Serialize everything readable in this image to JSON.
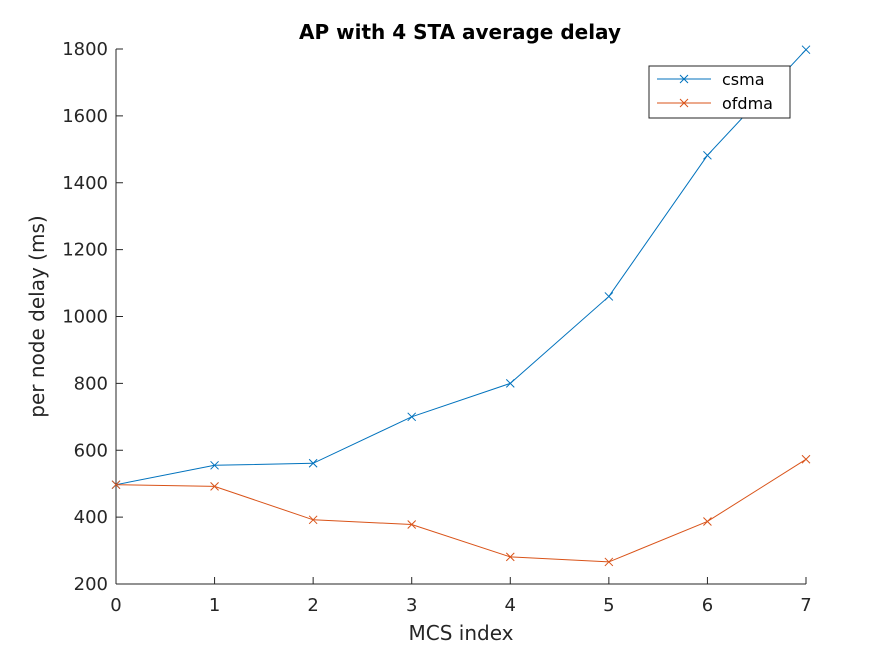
{
  "chart_data": {
    "type": "line",
    "title": "AP with 4 STA average delay",
    "xlabel": "MCS index",
    "ylabel": "per node delay (ms)",
    "x": [
      0,
      1,
      2,
      3,
      4,
      5,
      6,
      7
    ],
    "xlim": [
      0,
      7
    ],
    "ylim": [
      200,
      1800
    ],
    "xticks": [
      "0",
      "1",
      "2",
      "3",
      "4",
      "5",
      "6",
      "7"
    ],
    "yticks": [
      "200",
      "400",
      "600",
      "800",
      "1000",
      "1200",
      "1400",
      "1600",
      "1800"
    ],
    "grid": false,
    "legend_position": "top-right",
    "series": [
      {
        "name": "csma",
        "color": "#0072BD",
        "marker": "x",
        "values": [
          497,
          555,
          561,
          700,
          800,
          1060,
          1482,
          1798
        ]
      },
      {
        "name": "ofdma",
        "color": "#D95319",
        "marker": "x",
        "values": [
          497,
          492,
          392,
          378,
          281,
          266,
          387,
          573
        ]
      }
    ]
  }
}
